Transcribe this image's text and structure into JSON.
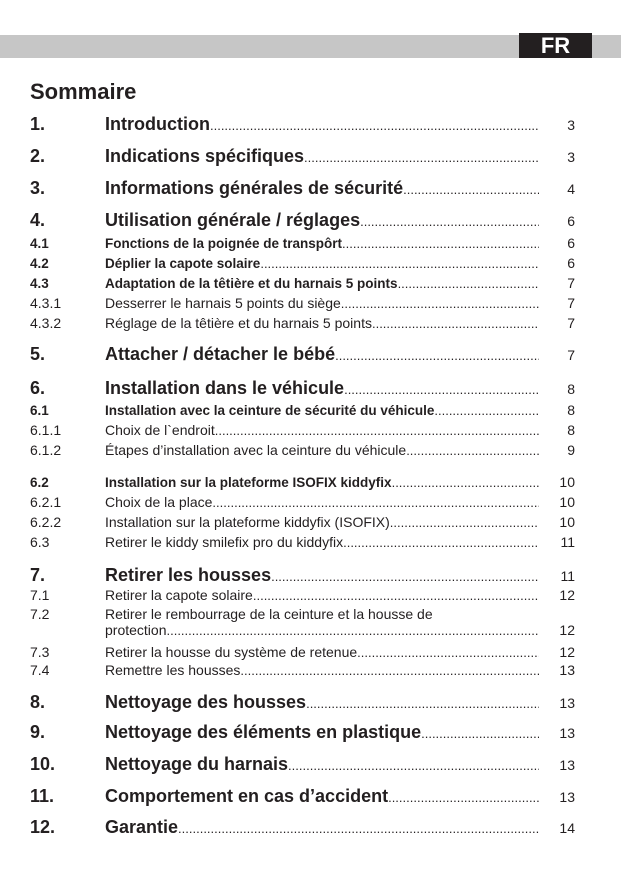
{
  "header": {
    "language": "FR"
  },
  "title": "Sommaire",
  "entries": [
    {
      "num": "1.",
      "text": "Introduction",
      "page": "3",
      "level": 1
    },
    {
      "num": "2.",
      "text": "Indications spécifiques",
      "page": "3",
      "level": 1
    },
    {
      "num": "3.",
      "text": "Informations générales de sécurité",
      "page": "4",
      "level": 1
    },
    {
      "num": "4.",
      "text": "Utilisation générale / réglages",
      "page": "6",
      "level": 1
    },
    {
      "num": "4.1",
      "text": "Fonctions de la poignée de transpôrt",
      "page": "6",
      "level": 2
    },
    {
      "num": "4.2",
      "text": "Déplier la capote solaire",
      "page": "6",
      "level": 2
    },
    {
      "num": "4.3",
      "text": "Adaptation de la têtière et du harnais 5 points",
      "page": "7",
      "level": 2
    },
    {
      "num": "4.3.1",
      "text": "Desserrer le harnais 5 points du siège",
      "page": "7",
      "level": 3
    },
    {
      "num": "4.3.2",
      "text": "Réglage de la têtière et du harnais 5 points",
      "page": "7",
      "level": 3
    },
    {
      "num": "5.",
      "text": "Attacher / détacher le bébé",
      "page": "7",
      "level": 1
    },
    {
      "num": "6.",
      "text": "Installation dans le véhicule",
      "page": "8",
      "level": 1
    },
    {
      "num": "6.1",
      "text": "Installation avec la ceinture de sécurité du véhicule",
      "page": "8",
      "level": 2
    },
    {
      "num": "6.1.1",
      "text": "Choix de l`endroit",
      "page": "8",
      "level": 3
    },
    {
      "num": "6.1.2",
      "text": "Étapes d’installation avec la ceinture du véhicule",
      "page": "9",
      "level": 3
    },
    {
      "num": "6.2",
      "text": "Installation sur la plateforme ISOFIX kiddyfix",
      "page": "10",
      "level": 2
    },
    {
      "num": "6.2.1",
      "text": "Choix de la place",
      "page": "10",
      "level": 3
    },
    {
      "num": "6.2.2",
      "text": "Installation sur la plateforme kiddyfix (ISOFIX)",
      "page": "10",
      "level": 3
    },
    {
      "num": "6.3",
      "text": "Retirer le kiddy smilefix pro du kiddyfix",
      "page": "11",
      "level": 3
    },
    {
      "num": "7.",
      "text": "Retirer les housses",
      "page": "11",
      "level": 1
    },
    {
      "num": "7.1",
      "text": "Retirer la capote solaire",
      "page": "12",
      "level": 3
    },
    {
      "num": "7.2",
      "text": "Retirer le rembourrage de la ceinture et la housse de",
      "text2": "protection",
      "page": "12",
      "level": 3
    },
    {
      "num": "7.3",
      "text": "Retirer la housse du système de retenue",
      "page": "12",
      "level": 3
    },
    {
      "num": "7.4",
      "text": "Remettre les housses",
      "page": "13",
      "level": 3
    },
    {
      "num": "8.",
      "text": "Nettoyage des housses",
      "page": "13",
      "level": 1
    },
    {
      "num": "9.",
      "text": "Nettoyage des éléments en plastique",
      "page": "13",
      "level": 1
    },
    {
      "num": "10.",
      "text": "Nettoyage du harnais",
      "page": "13",
      "level": 1
    },
    {
      "num": "11.",
      "text": "Comportement en cas d’accident",
      "page": "13",
      "level": 1
    },
    {
      "num": "12.",
      "text": "Garantie",
      "page": "14",
      "level": 1
    }
  ]
}
